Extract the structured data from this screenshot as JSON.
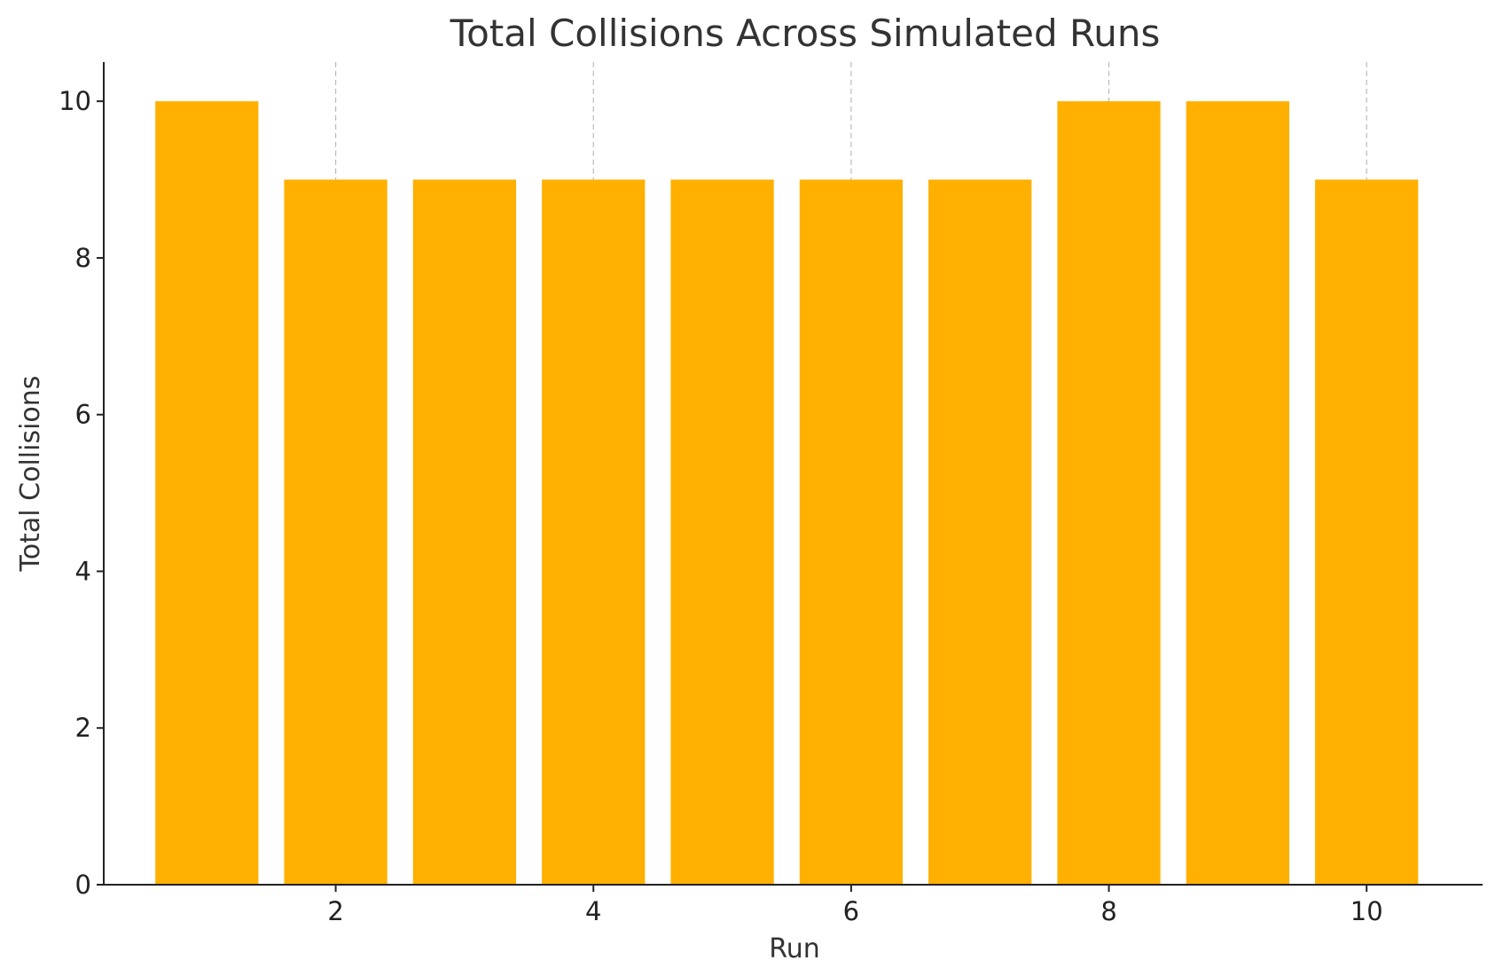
{
  "chart_data": {
    "type": "bar",
    "title": "Total Collisions Across Simulated Runs",
    "xlabel": "Run",
    "ylabel": "Total Collisions",
    "x": [
      1,
      2,
      3,
      4,
      5,
      6,
      7,
      8,
      9,
      10
    ],
    "values": [
      10,
      9,
      9,
      9,
      9,
      9,
      9,
      10,
      10,
      9
    ],
    "xlim": [
      0.2,
      10.9
    ],
    "ylim": [
      0,
      10.5
    ],
    "xticks": [
      2,
      4,
      6,
      8,
      10
    ],
    "yticks": [
      0,
      2,
      4,
      6,
      8,
      10
    ],
    "bar_color": "#ffb000",
    "grid": "x-axis vertical dashed lines",
    "legend": "none"
  }
}
